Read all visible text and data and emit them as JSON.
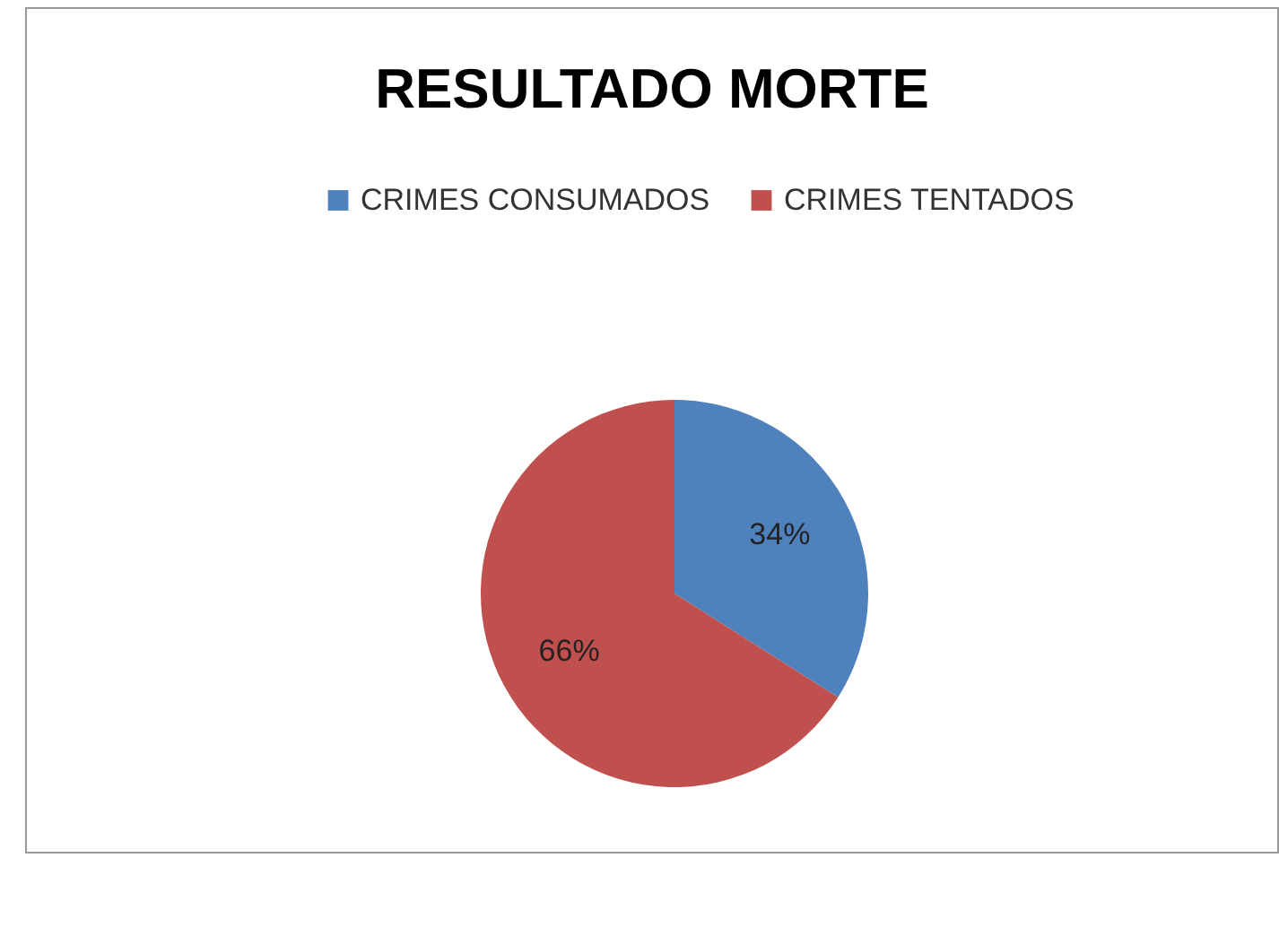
{
  "chart_data": {
    "type": "pie",
    "title": "RESULTADO  MORTE",
    "categories": [
      "CRIMES CONSUMADOS",
      "CRIMES TENTADOS"
    ],
    "values": [
      34,
      66
    ],
    "colors": [
      "#4f81bd",
      "#c0504d"
    ],
    "value_labels": [
      "34%",
      "66%"
    ],
    "legend": "top"
  }
}
